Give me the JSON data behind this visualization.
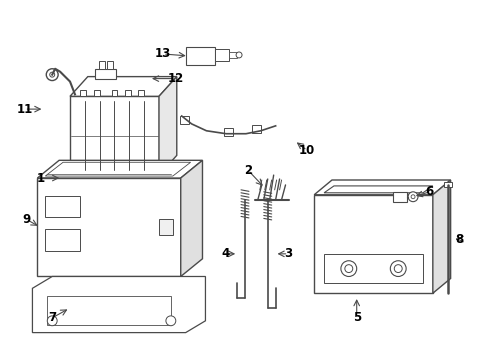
{
  "background_color": "#ffffff",
  "line_color": "#4a4a4a",
  "label_color": "#000000",
  "figsize": [
    4.89,
    3.6
  ],
  "dpi": 100
}
